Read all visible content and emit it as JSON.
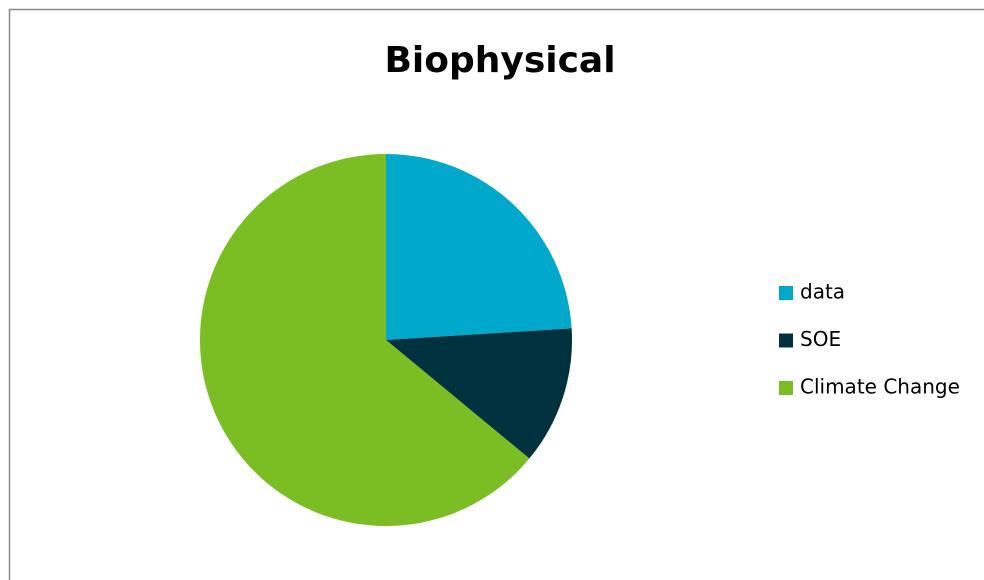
{
  "chart_data": {
    "type": "pie",
    "title": "Biophysical",
    "categories": [
      "data",
      "SOE",
      "Climate Change"
    ],
    "values": [
      24,
      12,
      64
    ],
    "colors": [
      "#00a8cc",
      "#00313f",
      "#7bbe24"
    ],
    "legend": "right"
  }
}
